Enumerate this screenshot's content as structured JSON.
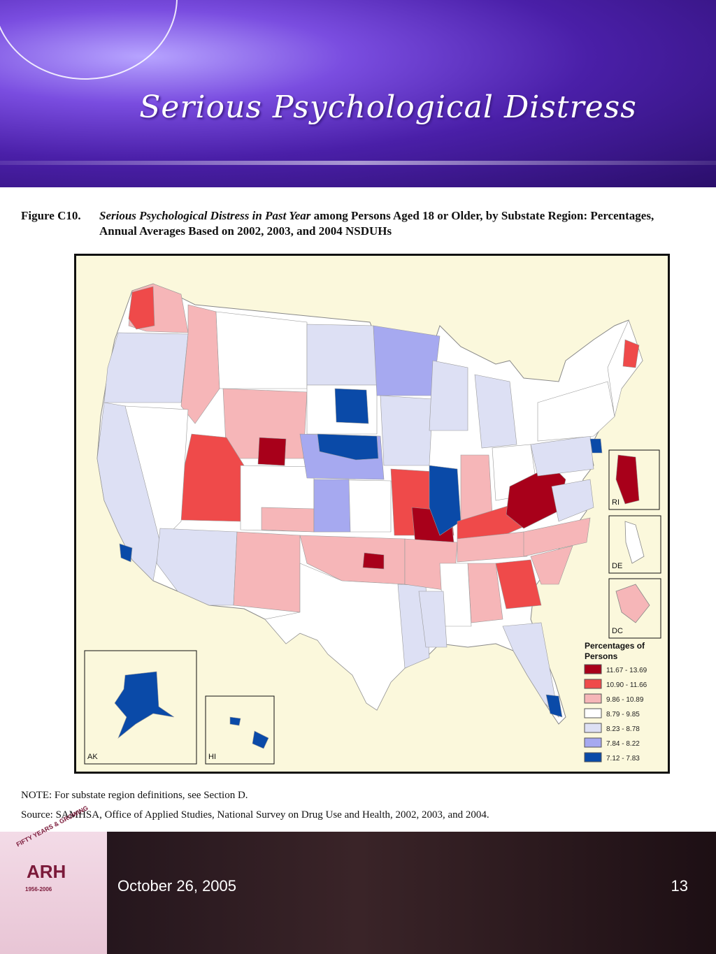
{
  "slide_title": "Serious Psychological Distress",
  "figure": {
    "label": "Figure C10.",
    "title_italic": "Serious Psychological Distress in Past Year",
    "title_rest": " among Persons Aged 18 or Older, by Substate Region: Percentages,",
    "title_line2": "Annual Averages Based on 2002, 2003, and 2004 NSDUHs"
  },
  "legend": {
    "title_line1": "Percentages of",
    "title_line2": "Persons",
    "items": [
      {
        "range": "11.67 - 13.69",
        "color": "#a8001a"
      },
      {
        "range": "10.90 - 11.66",
        "color": "#ef4a4a"
      },
      {
        "range": "9.86 - 10.89",
        "color": "#f6b6b8"
      },
      {
        "range": "8.79 - 9.85",
        "color": "#ffffff"
      },
      {
        "range": "8.23 - 8.78",
        "color": "#dde0f4"
      },
      {
        "range": "7.84 - 8.22",
        "color": "#a6a9f0"
      },
      {
        "range": "7.12 - 7.83",
        "color": "#0a4aa8"
      }
    ]
  },
  "insets": {
    "ak": "AK",
    "hi": "HI",
    "ri": "RI",
    "de": "DE",
    "dc": "DC"
  },
  "note": "NOTE: For substate region definitions, see Section D.",
  "source": "Source: SAMHSA, Office of Applied Studies, National Survey on Drug Use and Health, 2002, 2003, and 2004.",
  "footer": {
    "date": "October 26, 2005",
    "page": "13"
  },
  "logo": {
    "arch_text": "FIFTY YEARS & GROWING",
    "name": "ARH",
    "years": "1956-2006"
  }
}
